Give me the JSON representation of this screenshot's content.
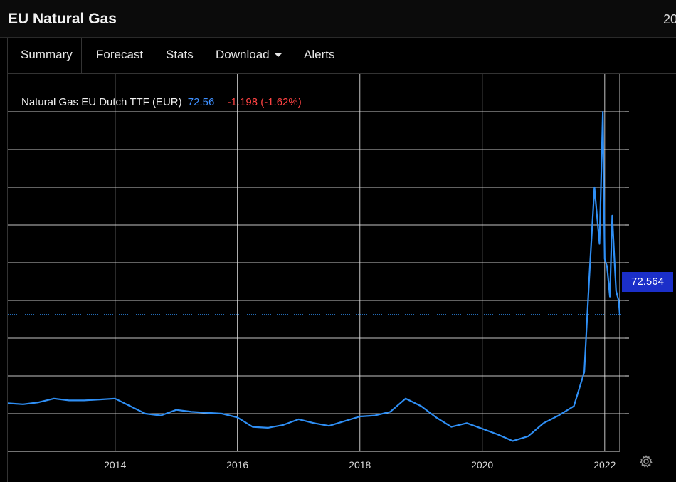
{
  "title": "EU Natural Gas",
  "title_right": "20",
  "tabs": [
    {
      "label": "Summary",
      "active": true
    },
    {
      "label": "Forecast"
    },
    {
      "label": "Stats"
    },
    {
      "label": "Download",
      "has_caret": true
    },
    {
      "label": "Alerts"
    }
  ],
  "legend": {
    "name": "Natural Gas EU Dutch TTF (EUR)",
    "price": "72.56",
    "change": "-1.198 (-1.62%)"
  },
  "price_tag": "72.564",
  "colors": {
    "line": "#2f8ff5",
    "price": "#3d8fff",
    "change": "#ff4343",
    "price_tag_bg": "#1b2fc9",
    "grid": "#e6e6e6"
  },
  "icons": {
    "settings": "gear-icon",
    "dropdown": "chevron-down-icon"
  },
  "chart_data": {
    "type": "line",
    "title": "Natural Gas EU Dutch TTF (EUR)",
    "xlabel": "",
    "ylabel": "",
    "x_tick_labels": [
      "2014",
      "2016",
      "2018",
      "2020",
      "2022"
    ],
    "y_tick_labels": [],
    "xlim": [
      "2012-04-01",
      "2022-04-01"
    ],
    "ylim": [
      0,
      200
    ],
    "grid": true,
    "last_value": 72.564,
    "series": [
      {
        "name": "Natural Gas EU Dutch TTF (EUR)",
        "x": [
          "2012-04-01",
          "2012-07-01",
          "2012-10-01",
          "2013-01-01",
          "2013-04-01",
          "2013-07-01",
          "2013-10-01",
          "2014-01-01",
          "2014-04-01",
          "2014-07-01",
          "2014-10-01",
          "2015-01-01",
          "2015-04-01",
          "2015-07-01",
          "2015-10-01",
          "2016-01-01",
          "2016-04-01",
          "2016-07-01",
          "2016-10-01",
          "2017-01-01",
          "2017-04-01",
          "2017-07-01",
          "2017-10-01",
          "2018-01-01",
          "2018-04-01",
          "2018-07-01",
          "2018-10-01",
          "2019-01-01",
          "2019-04-01",
          "2019-07-01",
          "2019-10-01",
          "2020-01-01",
          "2020-04-01",
          "2020-07-01",
          "2020-10-01",
          "2021-01-01",
          "2021-04-01",
          "2021-07-01",
          "2021-09-01",
          "2021-10-01",
          "2021-11-01",
          "2021-12-01",
          "2021-12-21",
          "2022-01-01",
          "2022-01-15",
          "2022-02-01",
          "2022-02-15",
          "2022-03-01",
          "2022-03-10",
          "2022-03-25",
          "2022-04-01"
        ],
        "y": [
          25.5,
          25,
          26,
          28,
          27,
          27,
          27.5,
          28,
          24,
          20,
          19,
          22,
          21,
          20.5,
          20,
          18,
          13,
          12.5,
          14,
          17,
          15,
          13.5,
          16,
          18.5,
          19,
          21,
          28,
          24,
          18,
          13,
          15,
          12,
          9,
          5.5,
          8,
          15,
          19,
          24,
          42,
          92,
          140,
          110,
          180,
          102,
          98,
          82,
          125,
          100,
          85,
          80,
          72.56
        ]
      }
    ]
  }
}
